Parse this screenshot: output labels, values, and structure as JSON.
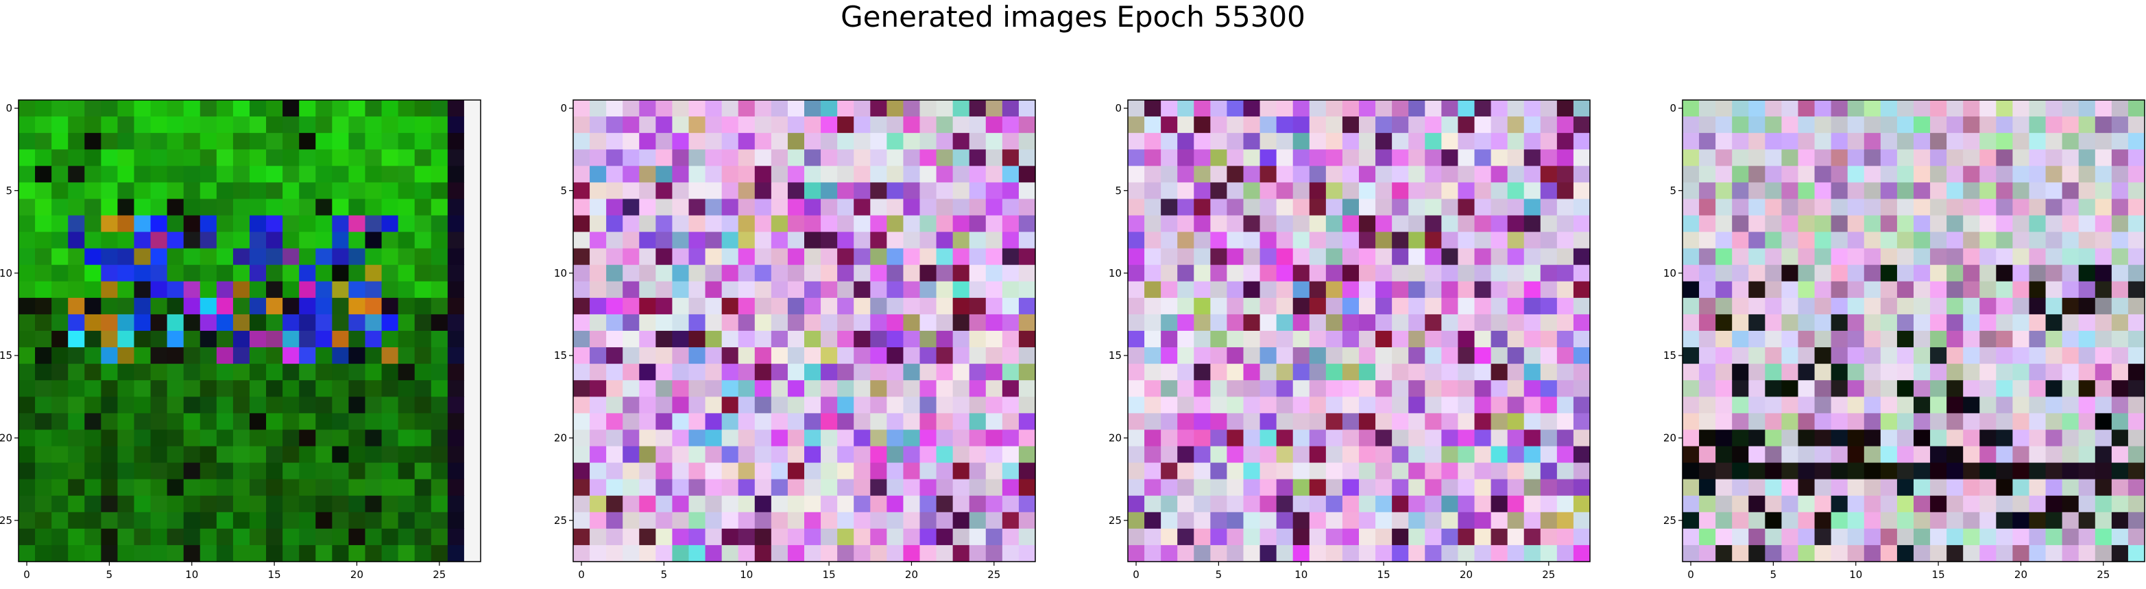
{
  "title": "Generated images Epoch 55300",
  "chart_data": [
    {
      "type": "heatmap",
      "palette": "green-dark",
      "grid_size": 28,
      "x_ticks": [
        0,
        5,
        10,
        15,
        20,
        25
      ],
      "y_ticks": [
        0,
        5,
        10,
        15,
        20,
        25
      ],
      "x_tick_labels": [
        "0",
        "5",
        "10",
        "15",
        "20",
        "25"
      ],
      "y_tick_labels": [
        "0",
        "5",
        "10",
        "15",
        "20",
        "25"
      ],
      "grid": false
    },
    {
      "type": "heatmap",
      "palette": "pink-purple",
      "grid_size": 28,
      "x_ticks": [
        0,
        5,
        10,
        15,
        20,
        25
      ],
      "y_ticks": [
        0,
        5,
        10,
        15,
        20,
        25
      ],
      "x_tick_labels": [
        "0",
        "5",
        "10",
        "15",
        "20",
        "25"
      ],
      "y_tick_labels": [
        "0",
        "5",
        "10",
        "15",
        "20",
        "25"
      ],
      "grid": false
    },
    {
      "type": "heatmap",
      "palette": "pink-magenta",
      "grid_size": 28,
      "x_ticks": [
        0,
        5,
        10,
        15,
        20,
        25
      ],
      "y_ticks": [
        0,
        5,
        10,
        15,
        20,
        25
      ],
      "x_tick_labels": [
        "0",
        "5",
        "10",
        "15",
        "20",
        "25"
      ],
      "y_tick_labels": [
        "0",
        "5",
        "10",
        "15",
        "20",
        "25"
      ],
      "grid": false
    },
    {
      "type": "heatmap",
      "palette": "pastel-mixed",
      "grid_size": 28,
      "x_ticks": [
        0,
        5,
        10,
        15,
        20,
        25
      ],
      "y_ticks": [
        0,
        5,
        10,
        15,
        20,
        25
      ],
      "x_tick_labels": [
        "0",
        "5",
        "10",
        "15",
        "20",
        "25"
      ],
      "y_tick_labels": [
        "0",
        "5",
        "10",
        "15",
        "20",
        "25"
      ],
      "grid": false
    }
  ]
}
